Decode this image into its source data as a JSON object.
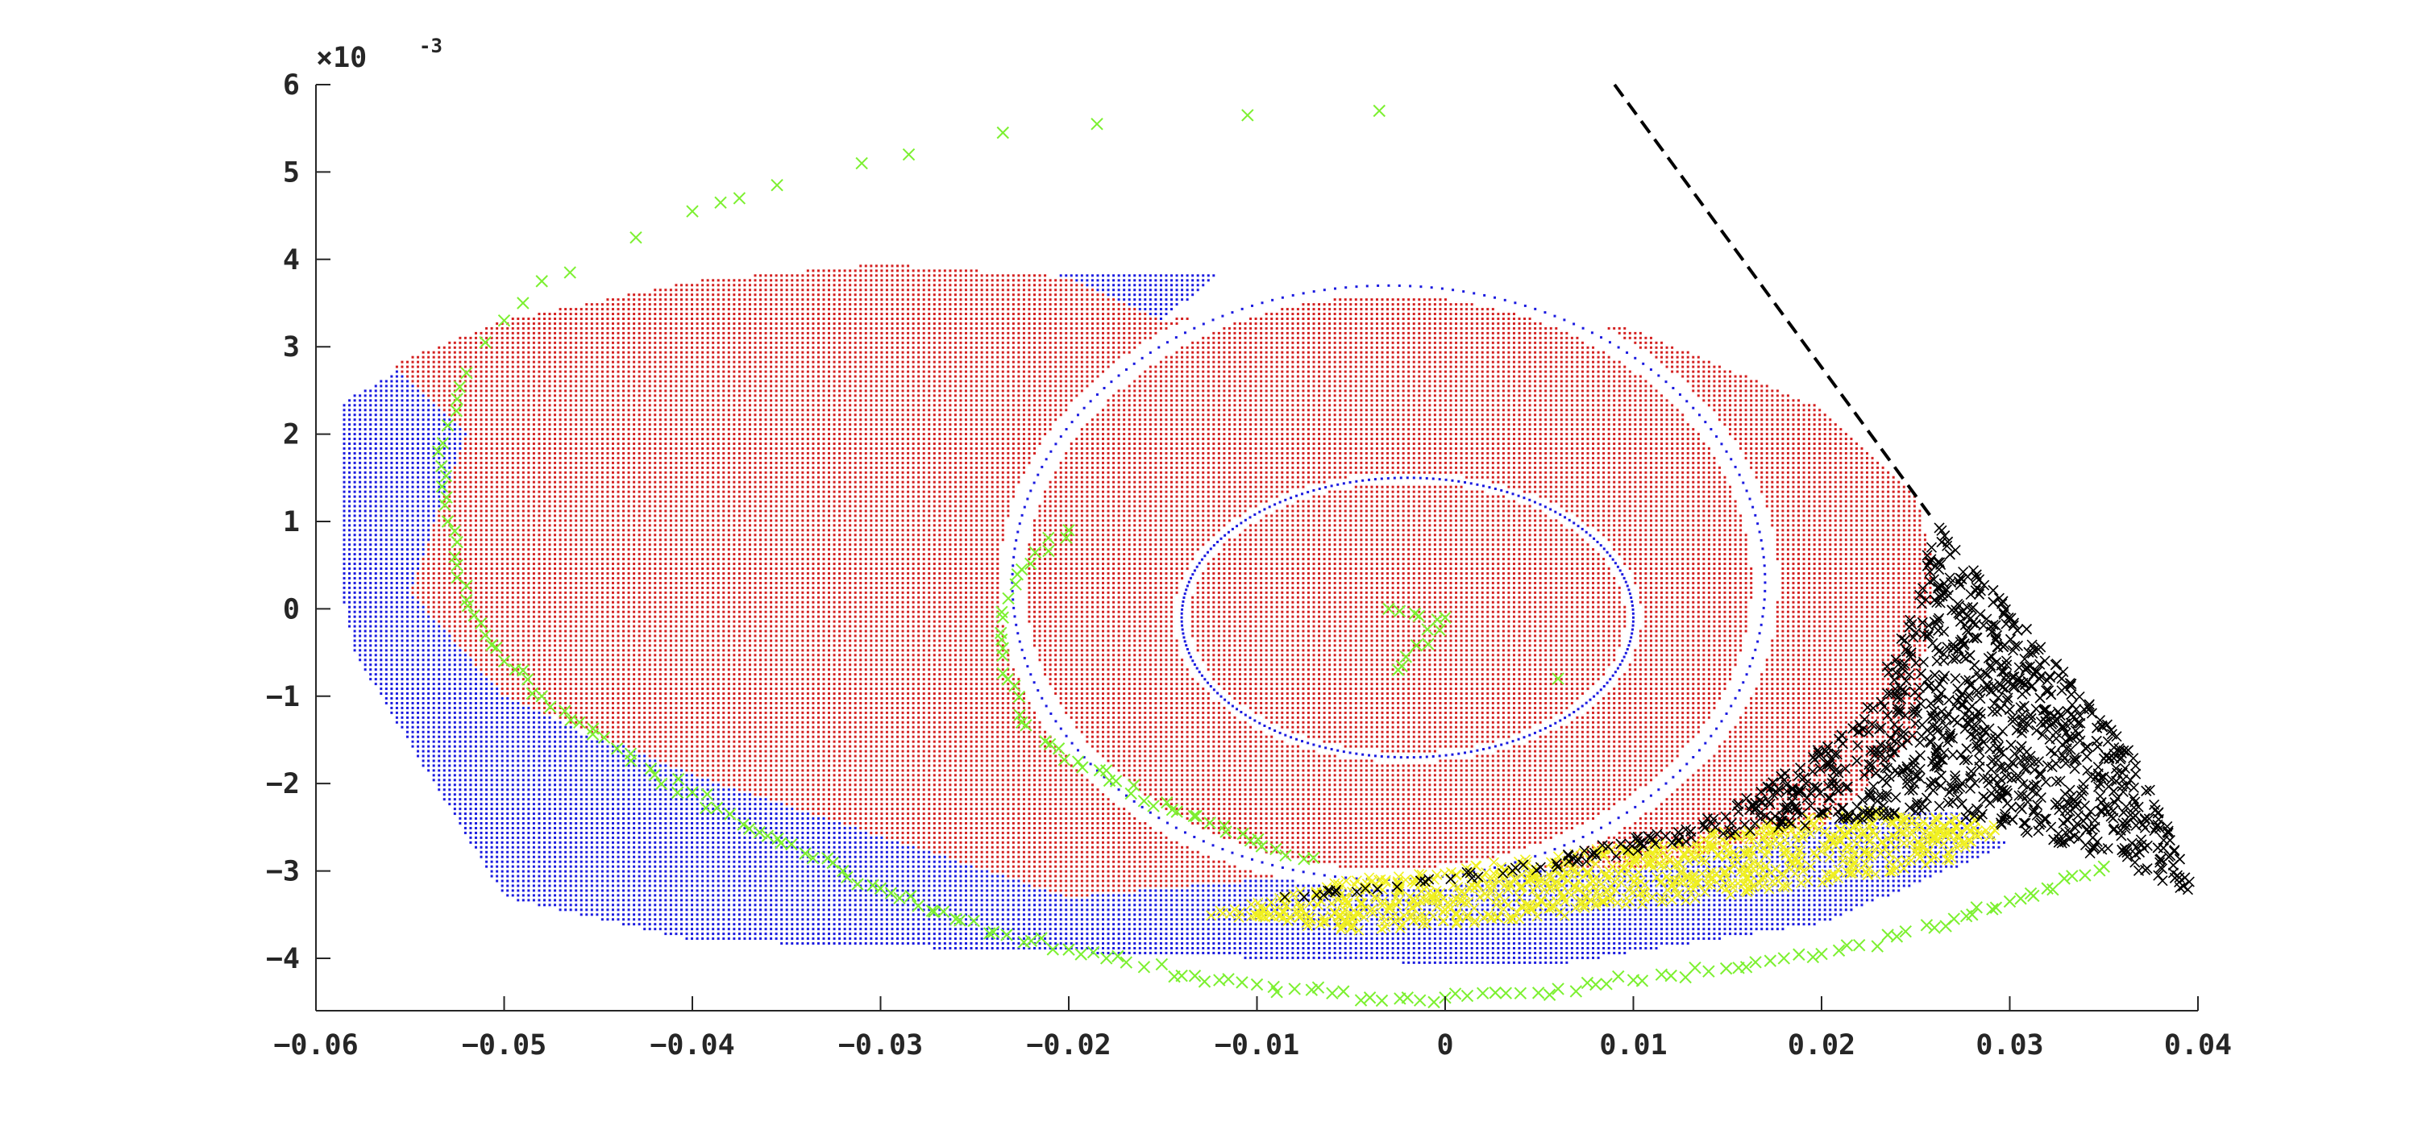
{
  "chart_data": {
    "type": "scatter",
    "title": "",
    "xlabel": "",
    "ylabel": "",
    "xlim": [
      -0.06,
      0.04
    ],
    "ylim": [
      -4.6,
      6
    ],
    "x_ticks": [
      -0.06,
      -0.05,
      -0.04,
      -0.03,
      -0.02,
      -0.01,
      0,
      0.01,
      0.02,
      0.03,
      0.04
    ],
    "x_tick_labels": [
      "−0.06",
      "−0.05",
      "−0.04",
      "−0.03",
      "−0.02",
      "−0.01",
      "0",
      "0.01",
      "0.02",
      "0.03",
      "0.04"
    ],
    "y_ticks": [
      -4,
      -3,
      -2,
      -1,
      0,
      1,
      2,
      3,
      4,
      5,
      6
    ],
    "y_tick_labels": [
      "−4",
      "−3",
      "−2",
      "−1",
      "0",
      "1",
      "2",
      "3",
      "4",
      "5",
      "6"
    ],
    "y_multiplier": {
      "base": "×10",
      "exponent": "-3"
    },
    "grid": false,
    "legend": "none",
    "colors": {
      "red_region": "#d42020",
      "blue_region": "#1a1ae0",
      "black_cloud": "#000000",
      "yellow_cloud": "#f0f020",
      "green_trajectory": "#7cf030",
      "dashed_line": "#000000"
    },
    "series": [
      {
        "kind": "region",
        "marker": "dot",
        "color": "red",
        "outline": [
          [
            -0.056,
            2.8
          ],
          [
            -0.05,
            3.3
          ],
          [
            -0.04,
            3.75
          ],
          [
            -0.03,
            3.95
          ],
          [
            -0.02,
            3.8
          ],
          [
            -0.015,
            3.3
          ],
          [
            -0.005,
            3.7
          ],
          [
            0,
            3.6
          ],
          [
            0.01,
            3.2
          ],
          [
            0.02,
            2.3
          ],
          [
            0.025,
            1.3
          ],
          [
            0.026,
            0.5
          ],
          [
            0.025,
            -1.5
          ],
          [
            0.02,
            -2.5
          ],
          [
            0.01,
            -3.0
          ],
          [
            0,
            -3.0
          ],
          [
            -0.01,
            -3.1
          ],
          [
            -0.02,
            -3.3
          ],
          [
            -0.03,
            -2.6
          ],
          [
            -0.04,
            -1.9
          ],
          [
            -0.05,
            -1.0
          ],
          [
            -0.055,
            0.2
          ],
          [
            -0.052,
            2.0
          ]
        ]
      },
      {
        "kind": "region",
        "marker": "dot",
        "color": "blue",
        "outline": [
          [
            -0.06,
            2.2
          ],
          [
            -0.055,
            2.8
          ],
          [
            -0.052,
            2.0
          ],
          [
            -0.055,
            0.2
          ],
          [
            -0.05,
            -1.0
          ],
          [
            -0.045,
            -1.5
          ],
          [
            -0.04,
            -1.7
          ],
          [
            -0.03,
            -1.8
          ],
          [
            -0.025,
            -1.6
          ],
          [
            -0.01,
            -2.4
          ],
          [
            0.0,
            -2.6
          ],
          [
            0.015,
            -2.5
          ],
          [
            0.027,
            -2.3
          ],
          [
            0.03,
            -2.7
          ],
          [
            0.02,
            -3.6
          ],
          [
            0.005,
            -4.1
          ],
          [
            -0.01,
            -4.0
          ],
          [
            -0.025,
            -3.9
          ],
          [
            -0.04,
            -3.8
          ],
          [
            -0.05,
            -3.3
          ],
          [
            -0.058,
            -0.5
          ],
          [
            -0.06,
            1.8
          ]
        ]
      },
      {
        "kind": "region",
        "marker": "dot",
        "color": "blue",
        "outline": [
          [
            -0.028,
            3.3
          ],
          [
            -0.02,
            3.85
          ],
          [
            -0.012,
            3.85
          ],
          [
            -0.015,
            3.3
          ],
          [
            -0.02,
            2.4
          ],
          [
            -0.026,
            1.8
          ],
          [
            -0.027,
            2.6
          ]
        ]
      },
      {
        "kind": "ring",
        "marker": "dot",
        "color": "blue",
        "center": [
          -0.003,
          0.3
        ],
        "radius": [
          0.02,
          3.4
        ]
      },
      {
        "kind": "ring",
        "marker": "dot",
        "color": "blue",
        "center": [
          -0.002,
          -0.1
        ],
        "radius": [
          0.012,
          1.6
        ]
      },
      {
        "kind": "cloud",
        "marker": "x",
        "color": "yellow",
        "outline": [
          [
            -0.013,
            -3.5
          ],
          [
            -0.005,
            -3.1
          ],
          [
            0.01,
            -2.7
          ],
          [
            0.022,
            -2.3
          ],
          [
            0.03,
            -2.45
          ],
          [
            0.027,
            -2.9
          ],
          [
            0.018,
            -3.2
          ],
          [
            0.005,
            -3.55
          ],
          [
            -0.005,
            -3.7
          ]
        ]
      },
      {
        "kind": "cloud",
        "marker": "x",
        "color": "black",
        "outline": [
          [
            -0.009,
            -3.3
          ],
          [
            0.005,
            -2.9
          ],
          [
            0.015,
            -2.3
          ],
          [
            0.022,
            -1.3
          ],
          [
            0.025,
            0.0
          ],
          [
            0.026,
            1.0
          ],
          [
            0.032,
            -0.5
          ],
          [
            0.037,
            -1.8
          ],
          [
            0.04,
            -3.3
          ],
          [
            0.033,
            -2.7
          ],
          [
            0.026,
            -2.3
          ],
          [
            0.015,
            -2.6
          ],
          [
            0.005,
            -3.0
          ],
          [
            -0.009,
            -3.35
          ]
        ]
      },
      {
        "kind": "trajectory",
        "marker": "x",
        "color": "green",
        "points": [
          [
            -0.0035,
            5.7
          ],
          [
            -0.0105,
            5.65
          ],
          [
            -0.0185,
            5.55
          ],
          [
            -0.0235,
            5.45
          ],
          [
            -0.0285,
            5.2
          ],
          [
            -0.031,
            5.1
          ],
          [
            -0.0355,
            4.85
          ],
          [
            -0.0375,
            4.7
          ],
          [
            -0.0385,
            4.65
          ],
          [
            -0.04,
            4.55
          ],
          [
            -0.043,
            4.25
          ],
          [
            -0.0465,
            3.85
          ],
          [
            -0.048,
            3.75
          ],
          [
            -0.049,
            3.5
          ],
          [
            -0.05,
            3.3
          ],
          [
            -0.051,
            3.05
          ],
          [
            -0.052,
            2.7
          ],
          [
            -0.0525,
            2.4
          ],
          [
            -0.053,
            2.1
          ],
          [
            -0.0535,
            1.8
          ],
          [
            -0.0533,
            1.4
          ],
          [
            -0.053,
            1.0
          ],
          [
            -0.0525,
            0.5
          ],
          [
            -0.052,
            0.1
          ],
          [
            -0.051,
            -0.3
          ],
          [
            -0.05,
            -0.6
          ],
          [
            -0.048,
            -1.0
          ],
          [
            -0.046,
            -1.3
          ],
          [
            -0.044,
            -1.6
          ],
          [
            -0.042,
            -1.9
          ],
          [
            -0.04,
            -2.1
          ],
          [
            -0.038,
            -2.35
          ],
          [
            -0.036,
            -2.6
          ],
          [
            -0.034,
            -2.8
          ],
          [
            -0.032,
            -3.0
          ],
          [
            -0.03,
            -3.2
          ],
          [
            -0.028,
            -3.4
          ],
          [
            -0.026,
            -3.55
          ],
          [
            -0.024,
            -3.7
          ],
          [
            -0.022,
            -3.8
          ],
          [
            -0.02,
            -3.9
          ],
          [
            -0.018,
            -4.0
          ],
          [
            -0.016,
            -4.1
          ],
          [
            -0.014,
            -4.2
          ],
          [
            -0.012,
            -4.25
          ],
          [
            -0.01,
            -4.3
          ],
          [
            -0.008,
            -4.35
          ],
          [
            -0.006,
            -4.4
          ],
          [
            -0.004,
            -4.45
          ],
          [
            -0.002,
            -4.45
          ],
          [
            0.0,
            -4.45
          ],
          [
            0.002,
            -4.4
          ],
          [
            0.004,
            -4.4
          ],
          [
            0.006,
            -4.35
          ],
          [
            0.008,
            -4.3
          ],
          [
            0.01,
            -4.25
          ],
          [
            0.012,
            -4.2
          ],
          [
            0.014,
            -4.15
          ],
          [
            0.016,
            -4.1
          ],
          [
            0.018,
            -4.0
          ],
          [
            0.02,
            -3.95
          ],
          [
            0.022,
            -3.85
          ],
          [
            0.024,
            -3.75
          ],
          [
            0.026,
            -3.65
          ],
          [
            0.028,
            -3.5
          ],
          [
            0.03,
            -3.35
          ],
          [
            0.032,
            -3.2
          ],
          [
            0.034,
            -3.05
          ],
          [
            0.035,
            -2.95
          ],
          [
            -0.02,
            0.9
          ],
          [
            -0.0225,
            0.45
          ],
          [
            -0.0235,
            -0.1
          ],
          [
            -0.0235,
            -0.45
          ],
          [
            -0.0225,
            -1.3
          ],
          [
            -0.021,
            -1.55
          ],
          [
            -0.0195,
            -1.75
          ],
          [
            -0.018,
            -1.85
          ],
          [
            -0.016,
            -2.2
          ],
          [
            -0.0145,
            -2.3
          ],
          [
            -0.0125,
            -2.45
          ],
          [
            -0.009,
            -2.75
          ],
          [
            -0.007,
            -2.85
          ],
          [
            -0.003,
            0.0
          ],
          [
            0.0,
            -0.1
          ],
          [
            -0.0025,
            -0.7
          ],
          [
            0.006,
            -0.8
          ]
        ]
      },
      {
        "kind": "line",
        "style": "dashed",
        "color": "black",
        "x": [
          0.009,
          0.026
        ],
        "y": [
          6.0,
          1.0
        ]
      }
    ]
  }
}
